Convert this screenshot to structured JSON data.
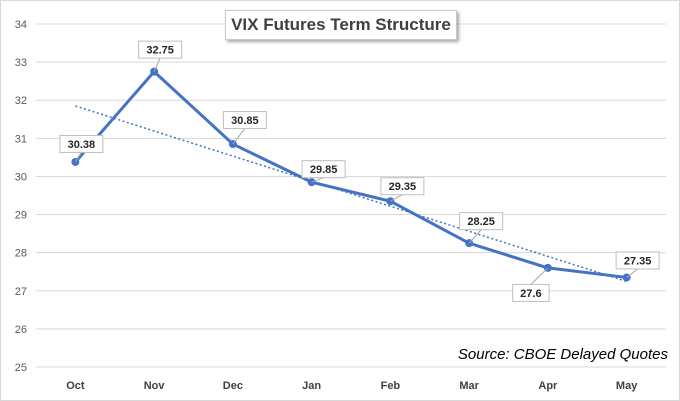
{
  "chart_data": {
    "type": "line",
    "title": "VIX Futures Term Structure",
    "categories": [
      "Oct",
      "Nov",
      "Dec",
      "Jan",
      "Feb",
      "Mar",
      "Apr",
      "May"
    ],
    "series": [
      {
        "values": [
          30.38,
          32.75,
          30.85,
          29.85,
          29.35,
          28.25,
          27.6,
          27.35
        ],
        "color": "#4472c4"
      }
    ],
    "data_labels": [
      "30.38",
      "32.75",
      "30.85",
      "29.85",
      "29.35",
      "28.25",
      "27.6",
      "27.35"
    ],
    "trendline": {
      "type": "linear",
      "style": "dotted",
      "color": "#4472c4"
    },
    "y_ticks": [
      "25",
      "26",
      "27",
      "28",
      "29",
      "30",
      "31",
      "32",
      "33",
      "34"
    ],
    "ylim": [
      25,
      34
    ],
    "grid": true,
    "xlabel": "",
    "ylabel": "",
    "annotation": "Source: CBOE Delayed Quotes"
  }
}
